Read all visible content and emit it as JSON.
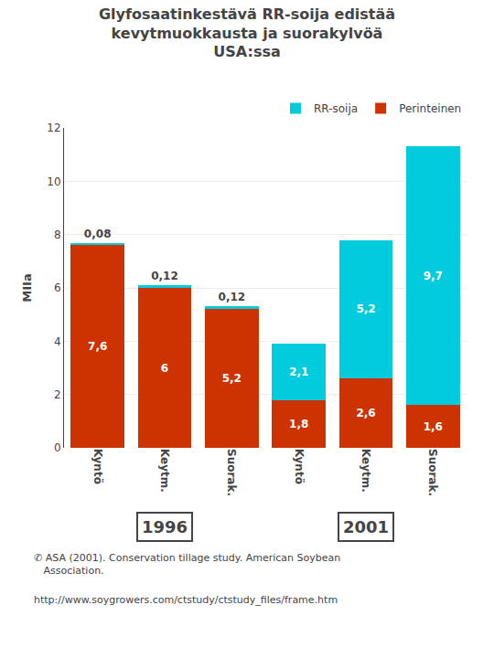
{
  "chart_data": {
    "type": "bar",
    "title": "Glyfosaatinkestävä RR-soija edistää\nkevytmuokkausta ja suorakylvöä\nUSA:ssa",
    "ylabel": "MIIa",
    "categories": [
      "Kyntö",
      "Keytm.",
      "Suorak.",
      "Kyntö",
      "Keytm.",
      "Suorak."
    ],
    "series": [
      {
        "name": "Perinteinen",
        "color": "#cc3300",
        "values": [
          7.6,
          6.0,
          5.2,
          1.8,
          2.6,
          1.6
        ],
        "value_labels": [
          "7,6",
          "6",
          "5,2",
          "1,8",
          "2,6",
          "1,6"
        ]
      },
      {
        "name": "RR-soija",
        "color": "#00ccdd",
        "values": [
          0.08,
          0.12,
          0.12,
          2.1,
          5.2,
          9.7
        ],
        "value_labels": [
          "0,08",
          "0,12",
          "0,12",
          "2,1",
          "5,2",
          "9,7"
        ]
      }
    ],
    "stacked": true,
    "data_labels": true,
    "ylim": [
      0,
      12
    ],
    "yticks": [
      0,
      2,
      4,
      6,
      8,
      10,
      12
    ],
    "grid": true,
    "legend": "upper right",
    "annotations": [
      {
        "text": "1996",
        "x": [
          0,
          2
        ]
      },
      {
        "text": "2001",
        "x": [
          3,
          5
        ]
      },
      {
        "text": "✆ ASA (2001). Conservation tillage study. American Soybean\n   Association."
      },
      {
        "text": "http://www.soygrowers.com/ctstudy/ctstudy_files/frame.htm"
      }
    ]
  }
}
